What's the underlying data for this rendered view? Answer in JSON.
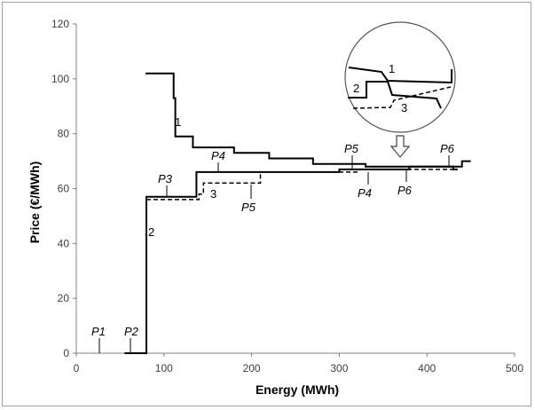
{
  "chart_data": {
    "type": "line",
    "xlabel": "Energy (MWh)",
    "ylabel": "Price (€/MWh)",
    "xlim": [
      0,
      500
    ],
    "ylim": [
      0,
      120
    ],
    "xticks": [
      "0",
      "100",
      "200",
      "300",
      "400",
      "500"
    ],
    "yticks": [
      "0",
      "20",
      "40",
      "60",
      "80",
      "100",
      "120"
    ],
    "grid": false,
    "series": [
      {
        "name": "1",
        "style": "solid",
        "points": [
          [
            79,
            102
          ],
          [
            111,
            102
          ],
          [
            111,
            93
          ],
          [
            113,
            93
          ],
          [
            113,
            79
          ],
          [
            133,
            79
          ],
          [
            133,
            75
          ],
          [
            180,
            75
          ],
          [
            180,
            73
          ],
          [
            220,
            73
          ],
          [
            220,
            71
          ],
          [
            270,
            71
          ],
          [
            270,
            69
          ],
          [
            330,
            69
          ],
          [
            330,
            68
          ],
          [
            440,
            68
          ],
          [
            440,
            70
          ],
          [
            450,
            70
          ]
        ]
      },
      {
        "name": "2",
        "style": "solid",
        "points": [
          [
            55,
            0
          ],
          [
            80,
            0
          ],
          [
            80,
            57
          ],
          [
            137,
            57
          ],
          [
            137,
            66
          ],
          [
            300,
            66
          ],
          [
            300,
            67
          ],
          [
            380,
            67
          ],
          [
            380,
            68
          ],
          [
            430,
            68
          ],
          [
            430,
            67
          ],
          [
            435,
            67
          ]
        ]
      },
      {
        "name": "3",
        "style": "dashed",
        "points": [
          [
            80,
            56
          ],
          [
            140,
            56
          ],
          [
            140,
            58
          ],
          [
            145,
            58
          ],
          [
            145,
            62
          ],
          [
            210,
            62
          ],
          [
            210,
            66
          ],
          [
            320,
            66
          ],
          [
            320,
            67
          ],
          [
            430,
            67
          ]
        ]
      }
    ],
    "annotations": {
      "curve_labels": [
        "1",
        "2",
        "3"
      ],
      "points": [
        {
          "label": "P1",
          "x": 28,
          "y": 0
        },
        {
          "label": "P2",
          "x": 63,
          "y": 0
        },
        {
          "label": "P3",
          "x": 105,
          "y": 57
        },
        {
          "label": "P4",
          "x": 163,
          "y": 66
        },
        {
          "label": "P5",
          "x": 200,
          "y": 62
        },
        {
          "label": "P5",
          "x": 313,
          "y": 67
        },
        {
          "label": "P4",
          "x": 333,
          "y": 66
        },
        {
          "label": "P6",
          "x": 380,
          "y": 67
        },
        {
          "label": "P6",
          "x": 427,
          "y": 68
        }
      ],
      "inset_labels": [
        "1",
        "2",
        "3"
      ]
    }
  }
}
